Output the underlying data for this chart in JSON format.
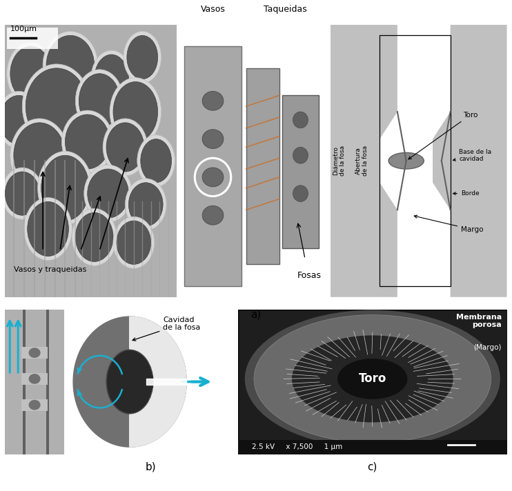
{
  "bg_color": "#ffffff",
  "fig_width": 7.42,
  "fig_height": 7.12,
  "dpi": 100,
  "label_a": "a)",
  "label_b": "b)",
  "label_c": "c)",
  "scale_bar_text": "100μm",
  "panel_a_label1": "Vasos",
  "panel_a_label2": "Taqueidas",
  "panel_a_label3": "Fosas",
  "panel_a_label4": "Vasos y traqueidas",
  "panel_b_cavidad": "Cavidad\nde la fosa",
  "panel_c_membrana": "Membrana\nporosa",
  "panel_c_margo_paren": "(Margo)",
  "panel_c_toro": "Toro",
  "panel_c_info": "2.5 kV     x 7,500     1 μm",
  "diag_toro": "Toro",
  "diag_base": "Base de la\ncavidad",
  "diag_borde": "Borde",
  "diag_margo": "Margo",
  "diag_diametro": "Diámetro\nde la fosa",
  "diag_abertura": "Abertura\nde la fosa",
  "arrow_color": "#1ab0d0",
  "sem_bg": "#9a9a9a",
  "diagram_gray": "#c8c8c8",
  "black": "#000000",
  "white": "#ffffff"
}
